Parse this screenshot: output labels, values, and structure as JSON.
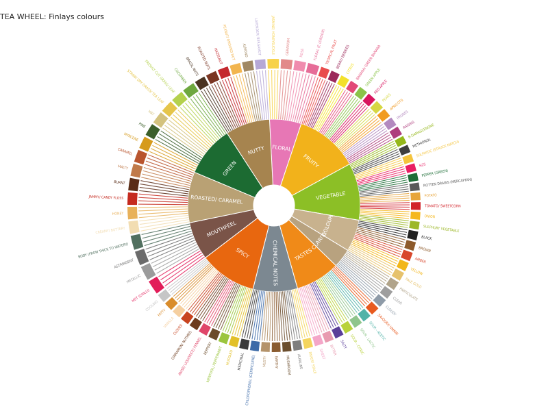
{
  "title": "TEA WHEEL: Finlays colours",
  "categories": [
    {
      "name": "FLORAL",
      "color": "#E777B5",
      "weight": 5,
      "labels": [
        {
          "t": "JASMINE/ HONEYSUCKLE",
          "c": "#F7D24A"
        },
        {
          "t": "GERANIUM",
          "c": "#E28989"
        },
        {
          "t": "ROSE",
          "c": "#F08CAE"
        },
        {
          "t": "FLORAL (E LONDON)",
          "c": "#E66D98"
        }
      ]
    },
    {
      "name": "FRUITY",
      "color": "#F2B21B",
      "weight": 10,
      "labels": [
        {
          "t": "TROPICAL FRUIT",
          "c": "#E94C4C"
        },
        {
          "t": "BERRY/ BERRIES",
          "c": "#9C2A5B"
        },
        {
          "t": "CITRUS",
          "c": "#F3E12B"
        },
        {
          "t": "BANANA/ GREEN BANANA",
          "c": "#E24A78"
        },
        {
          "t": "GREEN APPLE",
          "c": "#8BC34A"
        },
        {
          "t": "RED APPLE",
          "c": "#D8155F"
        },
        {
          "t": "PEARS",
          "c": "#D6D743"
        },
        {
          "t": "APRICOTS",
          "c": "#F19B22"
        },
        {
          "t": "PRUNES",
          "c": "#B38ABF"
        },
        {
          "t": "RAISINS",
          "c": "#AE3E7E"
        }
      ]
    },
    {
      "name": "VEGETABLE",
      "color": "#8CBF26",
      "weight": 9,
      "labels": [
        {
          "t": "B-DAMASCENONE",
          "c": "#95B81B"
        },
        {
          "t": "METHIONOL",
          "c": "#3F3F3F"
        },
        {
          "t": "SULPHITIC (STRUCK MATCH)",
          "c": "#F4C43D"
        },
        {
          "t": "H2S",
          "c": "#E91E63"
        },
        {
          "t": "PEPPER (GREEN)",
          "c": "#1E6E37"
        },
        {
          "t": "ROTTEN DRAINS (MERCAPTAN)",
          "c": "#5A5A5A"
        },
        {
          "t": "POTATO",
          "c": "#E7A53C"
        },
        {
          "t": "TOMATO/ SWEETCORN",
          "c": "#D2232A"
        },
        {
          "t": "ONION",
          "c": "#F5B820"
        },
        {
          "t": "SULPHURY VEGETABLE",
          "c": "#9DB829"
        }
      ]
    },
    {
      "name": "COLOUR",
      "color": "#C8B28E",
      "weight": 5,
      "labels": [
        {
          "t": "BLACK",
          "c": "#222222"
        },
        {
          "t": "BROWN",
          "c": "#8D5A2B"
        },
        {
          "t": "AMBER",
          "c": "#D8472C"
        },
        {
          "t": "YELLOW",
          "c": "#F2B61B"
        },
        {
          "t": "PALE GOLD",
          "c": "#E6C26C"
        }
      ]
    },
    {
      "name": "CLARITY",
      "color": "#B8A27F",
      "weight": 3,
      "labels": [
        {
          "t": "PARTICULATE",
          "c": "#B1A48A"
        },
        {
          "t": "CLEAR",
          "c": "#9E9E9E"
        },
        {
          "t": "CLOUDY",
          "c": "#8E9BA8"
        }
      ]
    },
    {
      "name": "TASTES",
      "color": "#F08A18",
      "weight": 7,
      "labels": [
        {
          "t": "SAVOURY/ UMAMI",
          "c": "#E85A1F"
        },
        {
          "t": "SOUR - ACETIC",
          "c": "#52B3A8"
        },
        {
          "t": "SOUR - LACTIC",
          "c": "#8FC58C"
        },
        {
          "t": "SOUR - CITRIC",
          "c": "#B9D23B"
        },
        {
          "t": "SALTY",
          "c": "#5A3E99"
        },
        {
          "t": "BITTER",
          "c": "#E89BB0"
        },
        {
          "t": "SWEET",
          "c": "#F4A6C8"
        }
      ]
    },
    {
      "name": "CHEMICAL NOTES",
      "color": "#7C8891",
      "weight": 7,
      "labels": [
        {
          "t": "PAPERY STALE",
          "c": "#F4D55E"
        },
        {
          "t": "ALKALINE",
          "c": "#7E7E7E"
        },
        {
          "t": "MUSHROOM",
          "c": "#6B4E2E"
        },
        {
          "t": "EARTHY",
          "c": "#8A5C31"
        },
        {
          "t": "MUSTY",
          "c": "#B4936B"
        },
        {
          "t": "CHLOROPHENOL (GERMICLENE)",
          "c": "#3C6AA8"
        },
        {
          "t": "MEDICINAL",
          "c": "#3B3B3B"
        }
      ]
    },
    {
      "name": "SPICY",
      "color": "#E8670F",
      "weight": 9,
      "labels": [
        {
          "t": "MUSTARD",
          "c": "#E2C02A"
        },
        {
          "t": "MENTHOL/ PEPPERMINT",
          "c": "#9BC53D"
        },
        {
          "t": "PEPPERY",
          "c": "#6C4B2A"
        },
        {
          "t": "ANISE/ LIQUORICE/ FENNEL",
          "c": "#E0466A"
        },
        {
          "t": "CINNAMON/ NUTMEG",
          "c": "#6D3B1D"
        },
        {
          "t": "CLOVES",
          "c": "#C8431F"
        },
        {
          "t": "VANILLA",
          "c": "#F5CFA0"
        },
        {
          "t": "FATTY",
          "c": "#D98C2B"
        },
        {
          "t": "COOLING",
          "c": "#C6C6C6"
        }
      ]
    },
    {
      "name": "MOUTHFEEL",
      "color": "#7A5448",
      "weight": 6,
      "labels": [
        {
          "t": "HOT (CHILLI)",
          "c": "#E21D59"
        },
        {
          "t": "METALLIC",
          "c": "#9B9B9B"
        },
        {
          "t": "ASTRINGENT",
          "c": "#6B6B6B"
        },
        {
          "t": "BODY (FROM THICK TO WATERY)",
          "c": "#51705F"
        }
      ]
    },
    {
      "name": "ROASTED/ CARAMEL",
      "color": "#B9A174",
      "weight": 8,
      "labels": [
        {
          "t": "CREAMY/ BUTTERY",
          "c": "#F2DDB2"
        },
        {
          "t": "HONEY",
          "c": "#E8B15A"
        },
        {
          "t": "JAMMY/ CANDY FLOSS",
          "c": "#C52A1F"
        },
        {
          "t": "BURNT",
          "c": "#5A2D17"
        },
        {
          "t": "MALTY",
          "c": "#C07A4A"
        },
        {
          "t": "CARAMEL",
          "c": "#B9552E"
        }
      ]
    },
    {
      "name": "GREEN",
      "color": "#1C6B32",
      "weight": 8,
      "labels": [
        {
          "t": "MYRCENE",
          "c": "#D69B1D"
        },
        {
          "t": "PINE",
          "c": "#3B5F2A"
        },
        {
          "t": "HAY",
          "c": "#D3C27E"
        },
        {
          "t": "STRAW/ DRY GRASS/ TEA LEAF",
          "c": "#E5C54A"
        },
        {
          "t": "FRESHLY CUT GRASS/ LEAF",
          "c": "#B4D14D"
        },
        {
          "t": "CUCUMBER",
          "c": "#6EA83F"
        }
      ]
    },
    {
      "name": "NUTTY",
      "color": "#A6844F",
      "weight": 7,
      "labels": [
        {
          "t": "BRAZIL NUTS",
          "c": "#4A3422"
        },
        {
          "t": "ROASTED NUTS",
          "c": "#7A3522"
        },
        {
          "t": "HAZELNUT",
          "c": "#C4282E"
        },
        {
          "t": "PEANUT/ GROUND NUT",
          "c": "#F2B54F"
        },
        {
          "t": "ALMOND",
          "c": "#A08863"
        },
        {
          "t": "LAVENDER/ BERGAMOT",
          "c": "#B6A8D6"
        }
      ]
    }
  ]
}
